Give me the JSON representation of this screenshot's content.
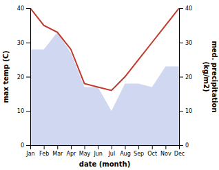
{
  "chart_data": {
    "type": "line",
    "categories": [
      "Jan",
      "Feb",
      "Mar",
      "Apr",
      "May",
      "Jun",
      "Jul",
      "Aug",
      "Sep",
      "Oct",
      "Nov",
      "Dec"
    ],
    "series": [
      {
        "type": "area",
        "color": "#b0bce8",
        "axis": "y2",
        "values": [
          28,
          28,
          33,
          27,
          17,
          17,
          10,
          18,
          18,
          17,
          23,
          23
        ]
      },
      {
        "type": "line",
        "color": "#c0392b",
        "values": [
          40,
          35,
          33,
          28,
          18,
          17,
          16,
          20,
          25,
          30,
          35,
          40
        ]
      }
    ],
    "x_label": "date (month)",
    "y_label": "max temp (C)",
    "y2_label": "med. precipitation\n(kg/m2)",
    "ylim": [
      0,
      40
    ],
    "yticks": [
      0,
      10,
      20,
      30,
      40
    ],
    "y2lim": [
      0,
      40
    ],
    "y2ticks": [
      0,
      10,
      20,
      30,
      40
    ]
  }
}
